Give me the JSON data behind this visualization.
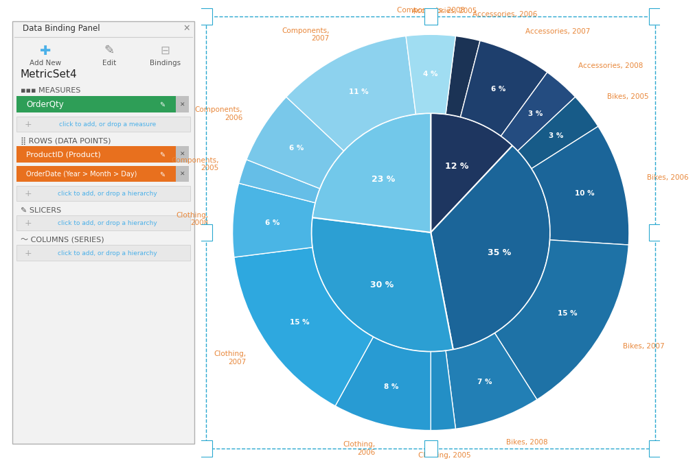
{
  "inner_segments": [
    {
      "label": "Accessories",
      "pct": 12,
      "color": "#1e3660"
    },
    {
      "label": "Bikes",
      "pct": 35,
      "color": "#1b6599"
    },
    {
      "label": "Clothing",
      "pct": 30,
      "color": "#2c9fd3"
    },
    {
      "label": "Components",
      "pct": 23,
      "color": "#72c8ea"
    }
  ],
  "outer_segments": [
    {
      "label": "Accessories, 2005",
      "pct": 2,
      "color": "#182d48"
    },
    {
      "label": "Accessories, 2006",
      "pct": 2,
      "color": "#1b3355"
    },
    {
      "label": "Accessories, 2007",
      "pct": 6,
      "color": "#1e3f6d"
    },
    {
      "label": "Accessories, 2008",
      "pct": 3,
      "color": "#244c80"
    },
    {
      "label": "Bikes, 2005",
      "pct": 3,
      "color": "#175b88"
    },
    {
      "label": "Bikes, 2006",
      "pct": 10,
      "color": "#1b6599"
    },
    {
      "label": "Bikes, 2007",
      "pct": 15,
      "color": "#1e72a6"
    },
    {
      "label": "Bikes, 2008",
      "pct": 7,
      "color": "#227fb5"
    },
    {
      "label": "Clothing, 2005",
      "pct": 2,
      "color": "#238fc6"
    },
    {
      "label": "Clothing, 2006",
      "pct": 8,
      "color": "#289bd3"
    },
    {
      "label": "Clothing, 2007",
      "pct": 15,
      "color": "#2ea8df"
    },
    {
      "label": "Clothing, 2008",
      "pct": 6,
      "color": "#4ab5e5"
    },
    {
      "label": "Components, 2005",
      "pct": 2,
      "color": "#65bee7"
    },
    {
      "label": "Components, 2006",
      "pct": 6,
      "color": "#79c8ea"
    },
    {
      "label": "Components, 2007",
      "pct": 11,
      "color": "#8dd2ee"
    },
    {
      "label": "Components, 2008",
      "pct": 4,
      "color": "#a0ddf2"
    }
  ],
  "background_color": "#ffffff",
  "label_color": "#e8873a",
  "border_color": "#29a8d0",
  "white": "#ffffff"
}
